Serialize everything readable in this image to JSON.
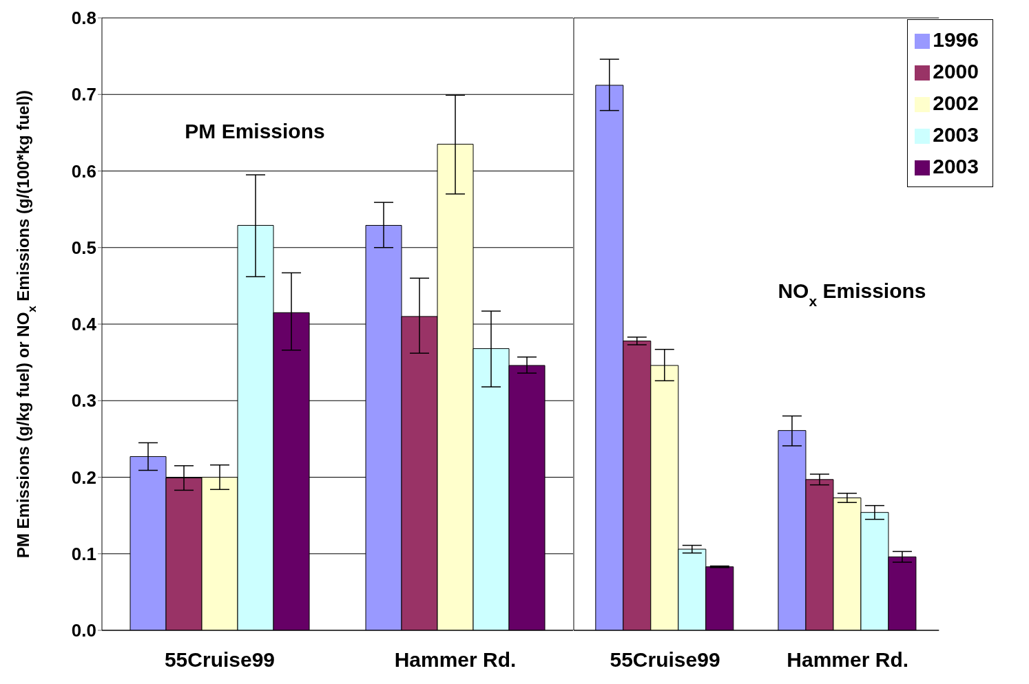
{
  "chart_data": [
    {
      "type": "bar",
      "ylabel": "PM Emissions (g/kg fuel) or NO$_{x}$ Emissions (g/(100*kg fuel))",
      "annotations": [
        "PM Emissions"
      ],
      "categories": [
        "55Cruise99",
        "Hammer Rd."
      ],
      "ylim": [
        0,
        0.8
      ],
      "yticks": [
        {
          "value": 0,
          "label": "0.0"
        },
        0.1,
        0.2,
        0.3,
        0.4,
        0.5,
        0.6,
        0.7,
        0.8
      ],
      "grid": "y",
      "legend": false,
      "series": [
        {
          "color": "#9999ff",
          "values": [
            0.227,
            0.529
          ],
          "errors": [
            [
              0.209,
              0.245
            ],
            [
              0.5,
              0.559
            ]
          ]
        },
        {
          "color": "#993366",
          "values": [
            0.199,
            0.41
          ],
          "errors": [
            [
              0.183,
              0.215
            ],
            [
              0.362,
              0.46
            ]
          ]
        },
        {
          "color": "#ffffcc",
          "values": [
            0.2,
            0.635
          ],
          "errors": [
            [
              0.184,
              0.216
            ],
            [
              0.57,
              0.699
            ]
          ]
        },
        {
          "color": "#ccffff",
          "values": [
            0.529,
            0.368
          ],
          "errors": [
            [
              0.462,
              0.595
            ],
            [
              0.318,
              0.417
            ]
          ]
        },
        {
          "color": "#660066",
          "values": [
            0.415,
            0.346
          ],
          "errors": [
            [
              0.366,
              0.467
            ],
            [
              0.336,
              0.357
            ]
          ]
        }
      ]
    },
    {
      "type": "bar",
      "annotations": [
        "NO$_{x}$ Emissions"
      ],
      "categories": [
        "55Cruise99",
        "Hammer Rd."
      ],
      "ylim": [
        0,
        0.8
      ],
      "yticks": [
        0,
        0.1,
        0.2,
        0.3,
        0.4,
        0.5,
        0.6,
        0.7,
        0.8
      ],
      "grid": "y",
      "tick_labels": "x",
      "legend": "top right",
      "series": [
        {
          "name": "1996",
          "color": "#9999ff",
          "values": [
            0.712,
            0.261
          ],
          "errors": [
            [
              0.679,
              0.746
            ],
            [
              0.241,
              0.28
            ]
          ]
        },
        {
          "name": "2000",
          "color": "#993366",
          "values": [
            0.378,
            0.197
          ],
          "errors": [
            [
              0.373,
              0.383
            ],
            [
              0.19,
              0.204
            ]
          ]
        },
        {
          "name": "2002",
          "color": "#ffffcc",
          "values": [
            0.346,
            0.173
          ],
          "errors": [
            [
              0.326,
              0.367
            ],
            [
              0.167,
              0.179
            ]
          ]
        },
        {
          "name": "2003",
          "color": "#ccffff",
          "values": [
            0.106,
            0.154
          ],
          "errors": [
            [
              0.101,
              0.111
            ],
            [
              0.145,
              0.163
            ]
          ]
        },
        {
          "name": "2003",
          "color": "#660066",
          "values": [
            0.083,
            0.096
          ],
          "errors": [
            [
              0.082,
              0.084
            ],
            [
              0.089,
              0.103
            ]
          ]
        }
      ]
    }
  ]
}
